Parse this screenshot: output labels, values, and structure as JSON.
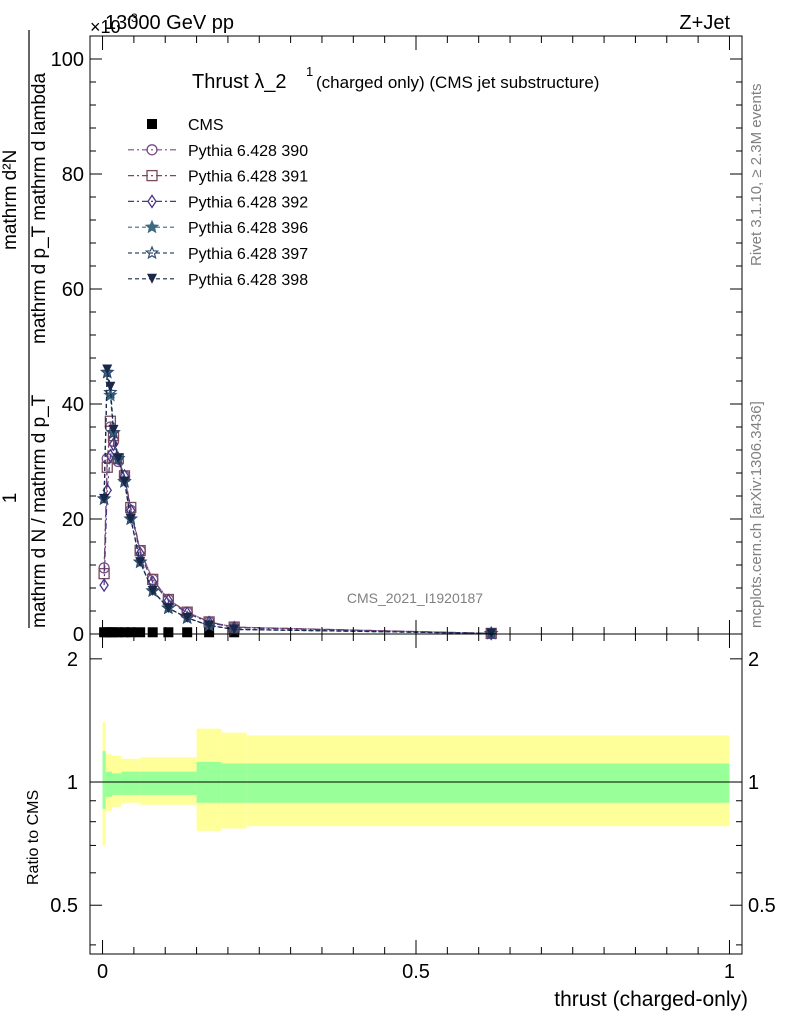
{
  "header": {
    "left": "13000 GeV pp",
    "right": "Z+Jet",
    "exponent_prefix": "×10",
    "exponent_power": "-3"
  },
  "title": {
    "main": "Thrust λ_2",
    "sup": "1",
    "rest": " (charged only) (CMS jet substructure)"
  },
  "watermark": "CMS_2021_I1920187",
  "side_labels": {
    "rivet": "Rivet 3.1.10, ≥ 2.3M events",
    "mcplots": "mcplots.cern.ch [arXiv:1306.3436]"
  },
  "axes": {
    "main_ylabel_num": "mathrm d²N",
    "main_ylabel_den": "mathrm d p_T mathrm d lambda",
    "main_ylabel_one": "1",
    "main_ylabel_sum": "mathrm d N / mathrm d p_T",
    "ratio_ylabel": "Ratio to CMS",
    "xlabel": "thrust (charged-only)",
    "main_yticks": [
      "0",
      "20",
      "40",
      "60",
      "80",
      "100"
    ],
    "ratio_yticks": [
      "0.5",
      "1",
      "2"
    ],
    "xticks": [
      "0",
      "0.5",
      "1"
    ]
  },
  "legend": [
    {
      "name": "CMS",
      "color": "#000000",
      "marker": "square-filled",
      "dash": ""
    },
    {
      "name": "Pythia 6.428 390",
      "color": "#7b4f8a",
      "marker": "circle-open",
      "dash": "6,3,2,3"
    },
    {
      "name": "Pythia 6.428 391",
      "color": "#7a4a5c",
      "marker": "square-open",
      "dash": "6,3,2,3"
    },
    {
      "name": "Pythia 6.428 392",
      "color": "#4b3585",
      "marker": "diamond-open",
      "dash": "6,3,2,3"
    },
    {
      "name": "Pythia 6.428 396",
      "color": "#3d6b82",
      "marker": "star-filled",
      "dash": "4,3"
    },
    {
      "name": "Pythia 6.428 397",
      "color": "#2e4c6e",
      "marker": "star-open",
      "dash": "4,3"
    },
    {
      "name": "Pythia 6.428 398",
      "color": "#1a2748",
      "marker": "triangle-down-filled",
      "dash": "4,3"
    }
  ],
  "chart_data": {
    "type": "line",
    "title": "Thrust λ_2^1 (charged only) (CMS jet substructure)",
    "xlabel": "thrust (charged-only)",
    "ylabel": "1/(mathrm d N / mathrm d p_T) mathrm d²N/(mathrm d p_T mathrm d lambda)",
    "y_scale_note": "×10^-3",
    "xlim": [
      -0.02,
      1.02
    ],
    "ylim": [
      0,
      104
    ],
    "ratio_ylim": [
      0.38,
      2.3
    ],
    "x": [
      0.0025,
      0.0075,
      0.0125,
      0.0175,
      0.025,
      0.035,
      0.045,
      0.06,
      0.08,
      0.105,
      0.135,
      0.17,
      0.21,
      0.62
    ],
    "series": [
      {
        "name": "CMS",
        "values": [
          0.3,
          0.3,
          0.3,
          0.3,
          0.3,
          0.3,
          0.3,
          0.3,
          0.3,
          0.3,
          0.3,
          0.3,
          0.3,
          0.05
        ]
      },
      {
        "name": "Pythia 6.428 390",
        "values": [
          11.5,
          30.5,
          36.0,
          33.5,
          30.0,
          27.5,
          21.5,
          14.5,
          9.5,
          6.0,
          3.8,
          2.1,
          1.2,
          0.1
        ]
      },
      {
        "name": "Pythia 6.428 391",
        "values": [
          10.5,
          29.0,
          37.0,
          34.5,
          30.5,
          27.5,
          22.0,
          14.5,
          9.5,
          6.0,
          3.8,
          2.1,
          1.2,
          0.1
        ]
      },
      {
        "name": "Pythia 6.428 392",
        "values": [
          8.5,
          25.0,
          31.0,
          33.0,
          30.5,
          27.5,
          21.5,
          14.0,
          9.0,
          5.8,
          3.6,
          2.0,
          1.1,
          0.1
        ]
      },
      {
        "name": "Pythia 6.428 396",
        "values": [
          23.5,
          45.5,
          41.5,
          35.0,
          30.5,
          26.5,
          20.0,
          12.5,
          7.5,
          4.5,
          2.8,
          1.5,
          0.8,
          0.1
        ]
      },
      {
        "name": "Pythia 6.428 397",
        "values": [
          23.5,
          45.5,
          42.0,
          35.0,
          30.5,
          26.5,
          20.0,
          12.5,
          7.5,
          4.5,
          2.8,
          1.5,
          0.8,
          0.1
        ]
      },
      {
        "name": "Pythia 6.428 398",
        "values": [
          23.5,
          46.0,
          43.0,
          35.5,
          30.5,
          26.5,
          20.0,
          12.5,
          7.5,
          4.5,
          2.8,
          1.5,
          0.8,
          0.1
        ]
      }
    ],
    "ratio_bands": [
      {
        "x0": 0.0,
        "x1": 0.005,
        "inner": [
          0.86,
          1.19
        ],
        "outer": [
          0.7,
          1.4
        ]
      },
      {
        "x0": 0.005,
        "x1": 0.015,
        "inner": [
          0.92,
          1.06
        ],
        "outer": [
          0.85,
          1.17
        ]
      },
      {
        "x0": 0.015,
        "x1": 0.03,
        "inner": [
          0.93,
          1.05
        ],
        "outer": [
          0.87,
          1.16
        ]
      },
      {
        "x0": 0.03,
        "x1": 0.06,
        "inner": [
          0.93,
          1.06
        ],
        "outer": [
          0.89,
          1.14
        ]
      },
      {
        "x0": 0.06,
        "x1": 0.15,
        "inner": [
          0.93,
          1.06
        ],
        "outer": [
          0.88,
          1.15
        ]
      },
      {
        "x0": 0.15,
        "x1": 0.19,
        "inner": [
          0.89,
          1.12
        ],
        "outer": [
          0.76,
          1.35
        ]
      },
      {
        "x0": 0.19,
        "x1": 0.23,
        "inner": [
          0.89,
          1.11
        ],
        "outer": [
          0.77,
          1.32
        ]
      },
      {
        "x0": 0.23,
        "x1": 1.0,
        "inner": [
          0.89,
          1.11
        ],
        "outer": [
          0.78,
          1.3
        ]
      }
    ],
    "colors": {
      "inner_band": "#99ff99",
      "outer_band": "#ffff99"
    }
  }
}
